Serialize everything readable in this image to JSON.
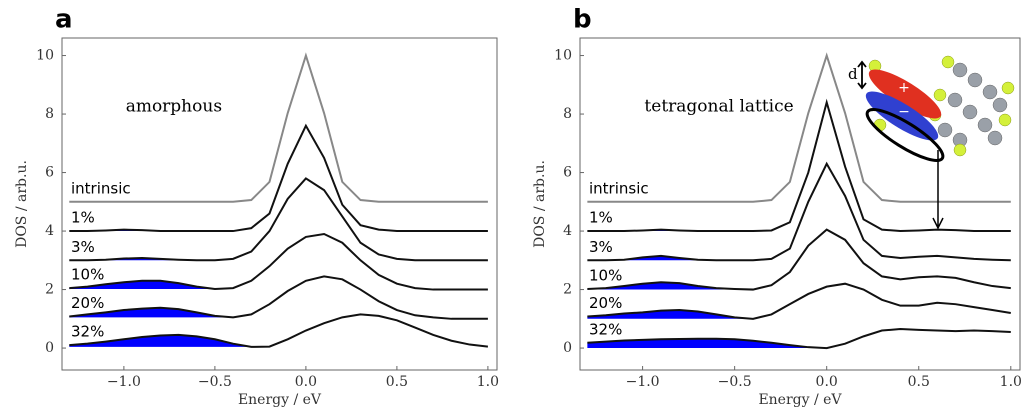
{
  "chart_data": [
    {
      "type": "line",
      "title": "a",
      "annotation": "amorphous",
      "xlabel": "Energy / eV",
      "ylabel": "DOS / arb.u.",
      "xlim": [
        -1.34,
        1.05
      ],
      "ylim": [
        -0.75,
        10.6
      ],
      "xticks": [
        {
          "value": -1.0,
          "label": "−1.0"
        },
        {
          "value": -0.5,
          "label": "−0.5"
        },
        {
          "value": 0.0,
          "label": "0.0"
        },
        {
          "value": 0.5,
          "label": "0.5"
        },
        {
          "value": 1.0,
          "label": "1.0"
        }
      ],
      "yticks": [
        0,
        2,
        4,
        6,
        8,
        10
      ],
      "x": [
        -1.3,
        -1.2,
        -1.1,
        -1.0,
        -0.9,
        -0.8,
        -0.7,
        -0.6,
        -0.5,
        -0.4,
        -0.3,
        -0.2,
        -0.1,
        0.0,
        0.1,
        0.2,
        0.3,
        0.4,
        0.5,
        0.6,
        0.7,
        0.8,
        0.9,
        1.0
      ],
      "series": [
        {
          "name": "intrinsic",
          "color": "#888888",
          "values": [
            5,
            5,
            5,
            5,
            5,
            5,
            5,
            5,
            5,
            5,
            5.06,
            5.68,
            8.03,
            10,
            8.03,
            5.68,
            5.06,
            5,
            5,
            5,
            5,
            5,
            5,
            5
          ]
        },
        {
          "name": "1%",
          "color": "#111111",
          "fill": "#0000ff",
          "values": [
            4.0,
            4.0,
            4.02,
            4.05,
            4.03,
            4.0,
            4.0,
            4.0,
            4.0,
            4.0,
            4.1,
            4.6,
            6.3,
            7.6,
            6.5,
            4.9,
            4.2,
            4.05,
            4.0,
            4.0,
            4.0,
            4.0,
            4.0,
            4.0
          ]
        },
        {
          "name": "3%",
          "color": "#111111",
          "fill": "#0000ff",
          "values": [
            3.0,
            3.0,
            3.02,
            3.06,
            3.08,
            3.05,
            3.02,
            3.0,
            3.0,
            3.05,
            3.3,
            4.0,
            5.1,
            5.8,
            5.4,
            4.5,
            3.6,
            3.2,
            3.05,
            3.0,
            3.0,
            3.0,
            3.0,
            3.0
          ]
        },
        {
          "name": "10%",
          "color": "#111111",
          "fill": "#0000ff",
          "values": [
            2.05,
            2.1,
            2.18,
            2.25,
            2.3,
            2.3,
            2.22,
            2.1,
            2.02,
            2.05,
            2.3,
            2.8,
            3.4,
            3.8,
            3.9,
            3.6,
            3.0,
            2.5,
            2.2,
            2.05,
            2.0,
            2.0,
            2.0,
            2.0
          ]
        },
        {
          "name": "20%",
          "color": "#111111",
          "fill": "#0000ff",
          "values": [
            1.08,
            1.15,
            1.22,
            1.3,
            1.35,
            1.38,
            1.33,
            1.22,
            1.1,
            1.05,
            1.15,
            1.5,
            1.95,
            2.3,
            2.45,
            2.35,
            2.0,
            1.6,
            1.3,
            1.12,
            1.05,
            1.0,
            1.0,
            1.0
          ]
        },
        {
          "name": "32%",
          "color": "#111111",
          "fill": "#0000ff",
          "values": [
            0.1,
            0.15,
            0.22,
            0.3,
            0.38,
            0.43,
            0.45,
            0.4,
            0.3,
            0.15,
            0.04,
            0.05,
            0.3,
            0.6,
            0.85,
            1.05,
            1.15,
            1.1,
            0.95,
            0.7,
            0.45,
            0.25,
            0.12,
            0.05
          ]
        }
      ]
    },
    {
      "type": "line",
      "title": "b",
      "annotation": "tetragonal lattice",
      "xlabel": "Energy / eV",
      "ylabel": "DOS / arb.u.",
      "xlim": [
        -1.34,
        1.05
      ],
      "ylim": [
        -0.75,
        10.6
      ],
      "xticks": [
        {
          "value": -1.0,
          "label": "−1.0"
        },
        {
          "value": -0.5,
          "label": "−0.5"
        },
        {
          "value": 0.0,
          "label": "0.0"
        },
        {
          "value": 0.5,
          "label": "0.5"
        },
        {
          "value": 1.0,
          "label": "1.0"
        }
      ],
      "yticks": [
        0,
        2,
        4,
        6,
        8,
        10
      ],
      "x": [
        -1.3,
        -1.2,
        -1.1,
        -1.0,
        -0.9,
        -0.8,
        -0.7,
        -0.6,
        -0.5,
        -0.4,
        -0.3,
        -0.2,
        -0.1,
        0.0,
        0.1,
        0.2,
        0.3,
        0.4,
        0.5,
        0.6,
        0.7,
        0.8,
        0.9,
        1.0
      ],
      "series": [
        {
          "name": "intrinsic",
          "color": "#888888",
          "values": [
            5,
            5,
            5,
            5,
            5,
            5,
            5,
            5,
            5,
            5,
            5.06,
            5.68,
            8.03,
            10,
            8.03,
            5.68,
            5.06,
            5,
            5,
            5,
            5,
            5,
            5,
            5
          ]
        },
        {
          "name": "1%",
          "color": "#111111",
          "fill": "#0000ff",
          "values": [
            4.0,
            4.0,
            4.0,
            4.02,
            4.05,
            4.02,
            4.0,
            4.0,
            4.0,
            4.0,
            4.02,
            4.3,
            6.0,
            8.4,
            6.2,
            4.4,
            4.05,
            4.0,
            4.02,
            4.05,
            4.03,
            4.0,
            4.0,
            4.0
          ]
        },
        {
          "name": "3%",
          "color": "#111111",
          "fill": "#0000ff",
          "values": [
            3.0,
            3.0,
            3.02,
            3.1,
            3.15,
            3.08,
            3.02,
            3.0,
            3.0,
            3.0,
            3.05,
            3.4,
            5.0,
            6.3,
            5.2,
            3.7,
            3.15,
            3.08,
            3.12,
            3.15,
            3.1,
            3.05,
            3.02,
            3.0
          ]
        },
        {
          "name": "10%",
          "color": "#111111",
          "fill": "#0000ff",
          "values": [
            2.02,
            2.05,
            2.12,
            2.2,
            2.25,
            2.22,
            2.12,
            2.05,
            2.02,
            2.0,
            2.15,
            2.6,
            3.5,
            4.05,
            3.7,
            2.9,
            2.45,
            2.35,
            2.42,
            2.45,
            2.4,
            2.25,
            2.12,
            2.05
          ]
        },
        {
          "name": "20%",
          "color": "#111111",
          "fill": "#0000ff",
          "values": [
            1.08,
            1.12,
            1.18,
            1.22,
            1.28,
            1.3,
            1.25,
            1.15,
            1.05,
            1.0,
            1.15,
            1.5,
            1.85,
            2.1,
            2.2,
            2.0,
            1.65,
            1.45,
            1.45,
            1.55,
            1.5,
            1.4,
            1.3,
            1.2
          ]
        },
        {
          "name": "32%",
          "color": "#111111",
          "fill": "#0000ff",
          "values": [
            0.18,
            0.22,
            0.26,
            0.28,
            0.3,
            0.31,
            0.32,
            0.32,
            0.3,
            0.25,
            0.18,
            0.1,
            0.03,
            0.0,
            0.15,
            0.4,
            0.6,
            0.65,
            0.62,
            0.6,
            0.58,
            0.6,
            0.58,
            0.55
          ]
        }
      ],
      "inset": {
        "label": "d",
        "plus": "+",
        "minus": "−"
      }
    }
  ]
}
